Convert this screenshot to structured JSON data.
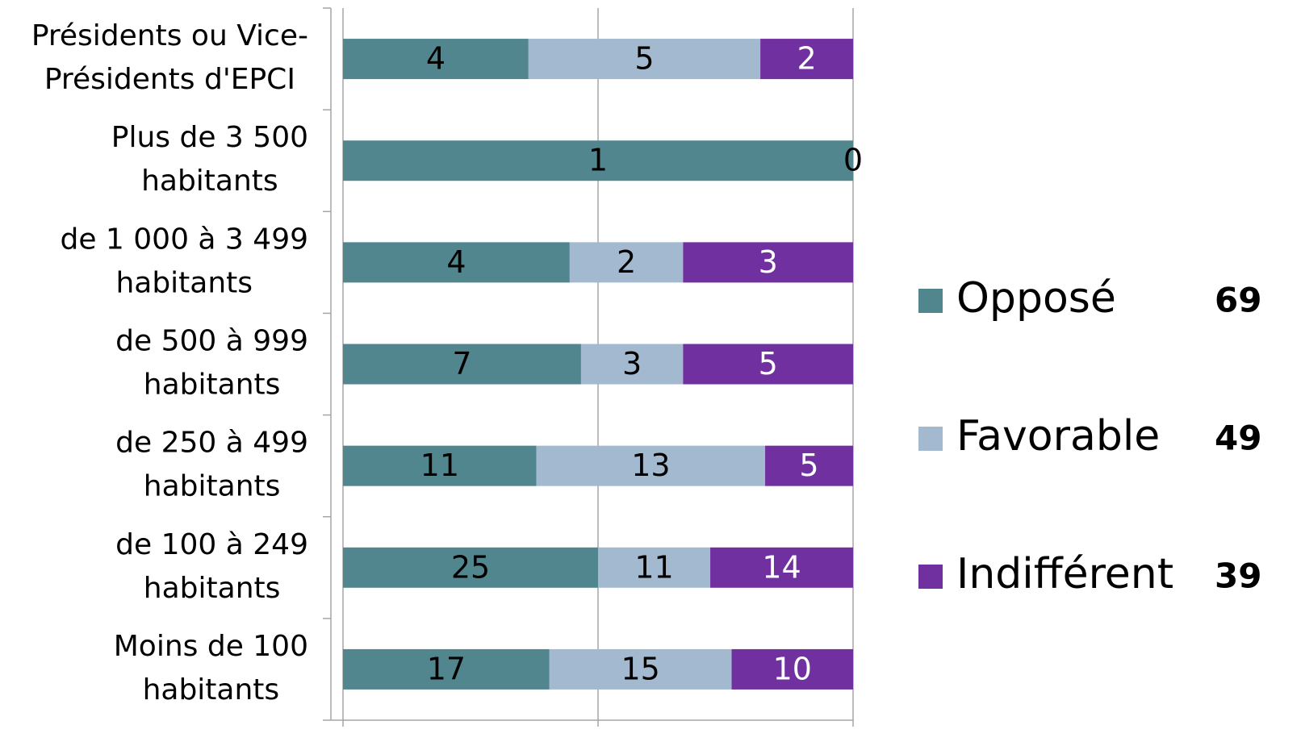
{
  "chart_data": {
    "type": "stacked_bar_100",
    "categories": [
      "Présidents ou Vice-\nPrésidents d'EPCI",
      "Plus de 3 500\nhabitants",
      "de 1 000 à 3 499\nhabitants",
      "de 500 à 999\nhabitants",
      "de 250 à 499\nhabitants",
      "de 100 à 249\nhabitants",
      "Moins de 100\nhabitants"
    ],
    "series": [
      {
        "name": "Opposé",
        "color": "#52868f",
        "label_color": "#000000",
        "total": 69,
        "values": [
          4,
          1,
          4,
          7,
          11,
          25,
          17
        ]
      },
      {
        "name": "Favorable",
        "color": "#a3b9cf",
        "label_color": "#000000",
        "total": 49,
        "values": [
          5,
          0,
          2,
          3,
          13,
          11,
          15
        ]
      },
      {
        "name": "Indifférent",
        "color": "#7030a0",
        "label_color": "#ffffff",
        "total": 39,
        "values": [
          2,
          null,
          3,
          5,
          5,
          14,
          10
        ]
      }
    ],
    "xlim": [
      0,
      100
    ],
    "xticks": [
      0,
      50,
      100
    ],
    "grid": true,
    "legend": "right"
  }
}
